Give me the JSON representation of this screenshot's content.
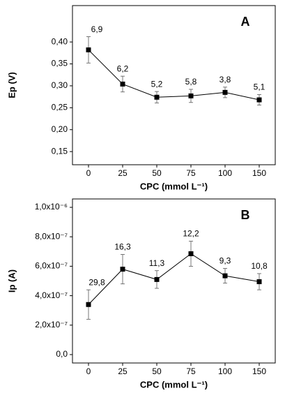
{
  "chart_data": [
    {
      "type": "line",
      "panel_label": "A",
      "xlabel": "CPC (mmol L⁻¹)",
      "ylabel": "Ep (V)",
      "categories": [
        "0",
        "25",
        "50",
        "75",
        "100",
        "150"
      ],
      "values": [
        0.382,
        0.304,
        0.274,
        0.277,
        0.285,
        0.268
      ],
      "errors": [
        0.03,
        0.018,
        0.013,
        0.015,
        0.012,
        0.012
      ],
      "annotations": [
        "6,9",
        "6,2",
        "5,2",
        "5,8",
        "3,8",
        "5,1"
      ],
      "color": "#000000",
      "ylim": [
        0.12,
        0.483
      ],
      "yticks": [
        {
          "value": 0.15,
          "label": "0,15"
        },
        {
          "value": 0.2,
          "label": "0,20"
        },
        {
          "value": 0.25,
          "label": "0,25"
        },
        {
          "value": 0.3,
          "label": "0,30"
        },
        {
          "value": 0.35,
          "label": "0,35"
        },
        {
          "value": 0.4,
          "label": "0,40"
        }
      ]
    },
    {
      "type": "line",
      "panel_label": "B",
      "xlabel": "CPC (mmol L⁻¹)",
      "ylabel": "Ip (A)",
      "categories": [
        "0",
        "25",
        "50",
        "75",
        "100",
        "150"
      ],
      "values": [
        3.4e-07,
        5.8e-07,
        5.1e-07,
        6.85e-07,
        5.35e-07,
        4.95e-07
      ],
      "errors": [
        1e-07,
        1e-07,
        6e-08,
        8.5e-08,
        5e-08,
        5.5e-08
      ],
      "annotations": [
        "29,8",
        "16,3",
        "11,3",
        "12,2",
        "9,3",
        "10,8"
      ],
      "color": "#000000",
      "ylim": [
        -5.7e-08,
        1.057e-06
      ],
      "yticks": [
        {
          "value": 0,
          "label": "0,0"
        },
        {
          "value": 2e-07,
          "label": "2,0x10⁻⁷"
        },
        {
          "value": 4e-07,
          "label": "4,0x10⁻⁷"
        },
        {
          "value": 6e-07,
          "label": "6,0x10⁻⁷"
        },
        {
          "value": 8e-07,
          "label": "8,0x10⁻⁷"
        },
        {
          "value": 1e-06,
          "label": "1,0x10⁻⁶"
        }
      ]
    }
  ]
}
